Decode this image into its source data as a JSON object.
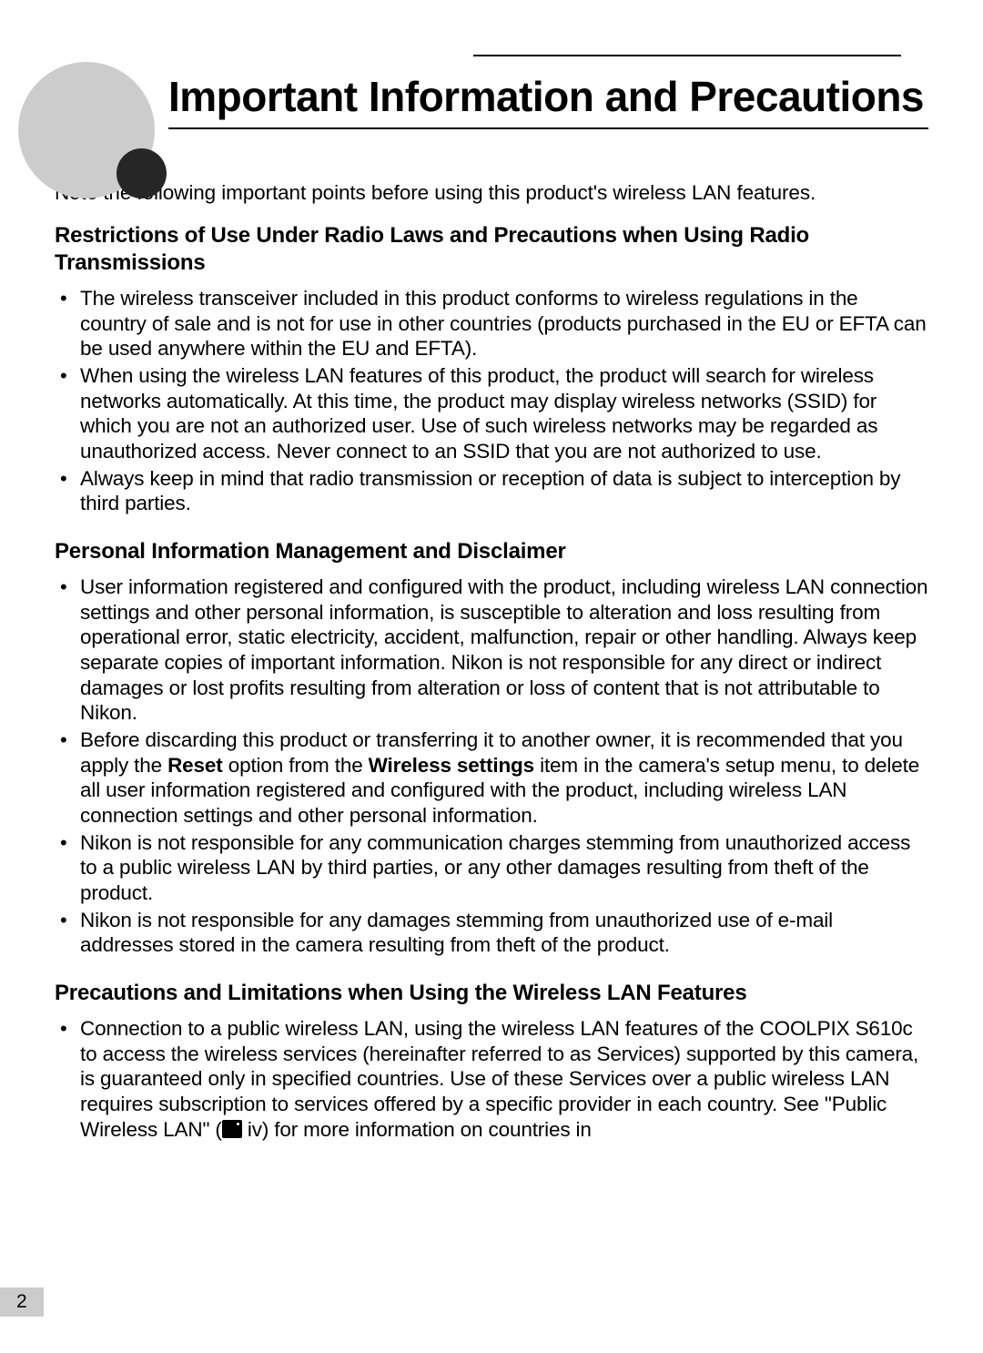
{
  "colors": {
    "text": "#000000",
    "background": "#ffffff",
    "circle_big": "#cccccc",
    "circle_small": "#262626",
    "page_num_bg": "#cccccc"
  },
  "typography": {
    "body_fontsize_pt": 17,
    "title_fontsize_pt": 35,
    "section_title_fontsize_pt": 18,
    "font_family": "sans-serif"
  },
  "page_number": "2",
  "title": "Important Information and Precautions",
  "intro": "Note the following important points before using this product's wireless LAN features.",
  "sections": [
    {
      "title": "Restrictions of Use Under Radio Laws and Precautions when Using Radio Transmissions",
      "bullets": [
        {
          "text": "The wireless transceiver included in this product conforms to wireless regulations in the country of sale and is not for use in other countries (products purchased in the EU or EFTA can be used anywhere within the EU and EFTA)."
        },
        {
          "text": "When using the wireless LAN features of this product, the product will search for wireless networks automatically. At this time, the product may display wireless networks (SSID) for which you are not an authorized user. Use of such wireless networks may be regarded as unauthorized access. Never connect to an SSID that you are not authorized to use."
        },
        {
          "text": "Always keep in mind that radio transmission or reception of data is subject to interception by third parties."
        }
      ]
    },
    {
      "title": "Personal Information Management and Disclaimer",
      "bullets": [
        {
          "text": "User information registered and configured with the product, including wireless LAN connection settings and other personal information, is susceptible to alteration and loss resulting from operational error, static electricity, accident, malfunction, repair or other handling. Always keep separate copies of important information. Nikon is not responsible for any direct or indirect damages or lost profits resulting from alteration or loss of content that is not attributable to Nikon."
        },
        {
          "html": "Before discarding this product or transferring it to another owner, it is recommended that you apply the <span class=\"bold\">Reset</span> option from the <span class=\"bold\">Wireless settings</span> item in the camera's setup menu, to delete all user information registered and configured with the product, including wireless LAN connection settings and other personal information."
        },
        {
          "text": "Nikon is not responsible for any communication charges stemming from unauthorized access to a public wireless LAN by third parties, or any other damages resulting from theft of the product."
        },
        {
          "text": "Nikon is not responsible for any damages stemming from unauthorized use of e-mail addresses stored in the camera resulting from theft of the product."
        }
      ]
    },
    {
      "title": "Precautions and Limitations when Using the Wireless LAN Features",
      "bullets": [
        {
          "html": "Connection to a public wireless LAN, using the wireless LAN features of the COOLPIX S610c to access the wireless services (hereinafter referred to as Services) supported by this camera, is guaranteed only in specified countries. Use of these Services over a public wireless LAN requires subscription to services offered by a specific provider in each country. See \"Public Wireless LAN\" (<span class=\"page-icon\" data-name=\"camera-page-icon\" data-interactable=\"false\"></span> iv) for more information on countries in"
        }
      ]
    }
  ]
}
